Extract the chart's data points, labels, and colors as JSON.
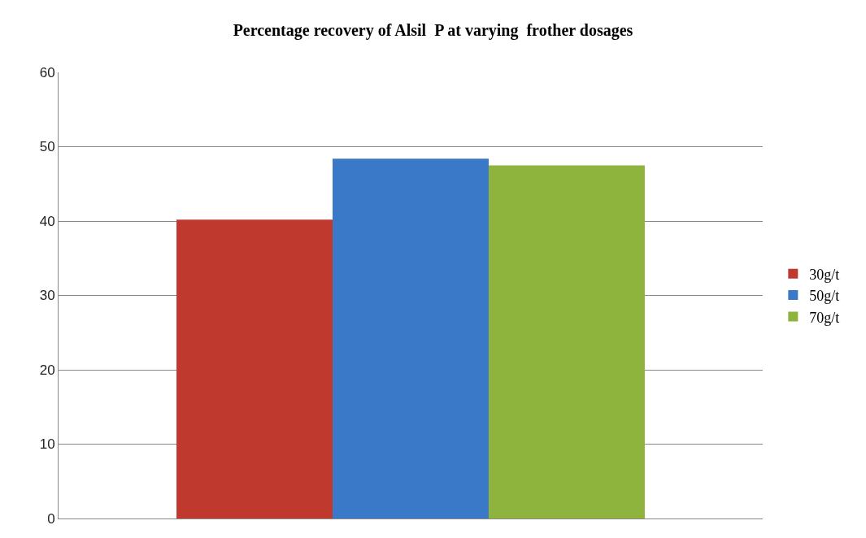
{
  "chart_data": {
    "type": "bar",
    "title": "Percentage recovery of Alsil  P at varying  frother dosages",
    "categories": [
      null
    ],
    "series": [
      {
        "name": "30g/t",
        "color": "#c0392f",
        "values": [
          40.2
        ]
      },
      {
        "name": "50g/t",
        "color": "#3a78c8",
        "values": [
          48.4
        ]
      },
      {
        "name": "70g/t",
        "color": "#8fb43e",
        "values": [
          47.5
        ]
      }
    ],
    "ylim": [
      0,
      60
    ],
    "yticks": [
      0,
      10,
      20,
      30,
      40,
      50,
      60
    ],
    "grid": "y",
    "legend": "right"
  }
}
